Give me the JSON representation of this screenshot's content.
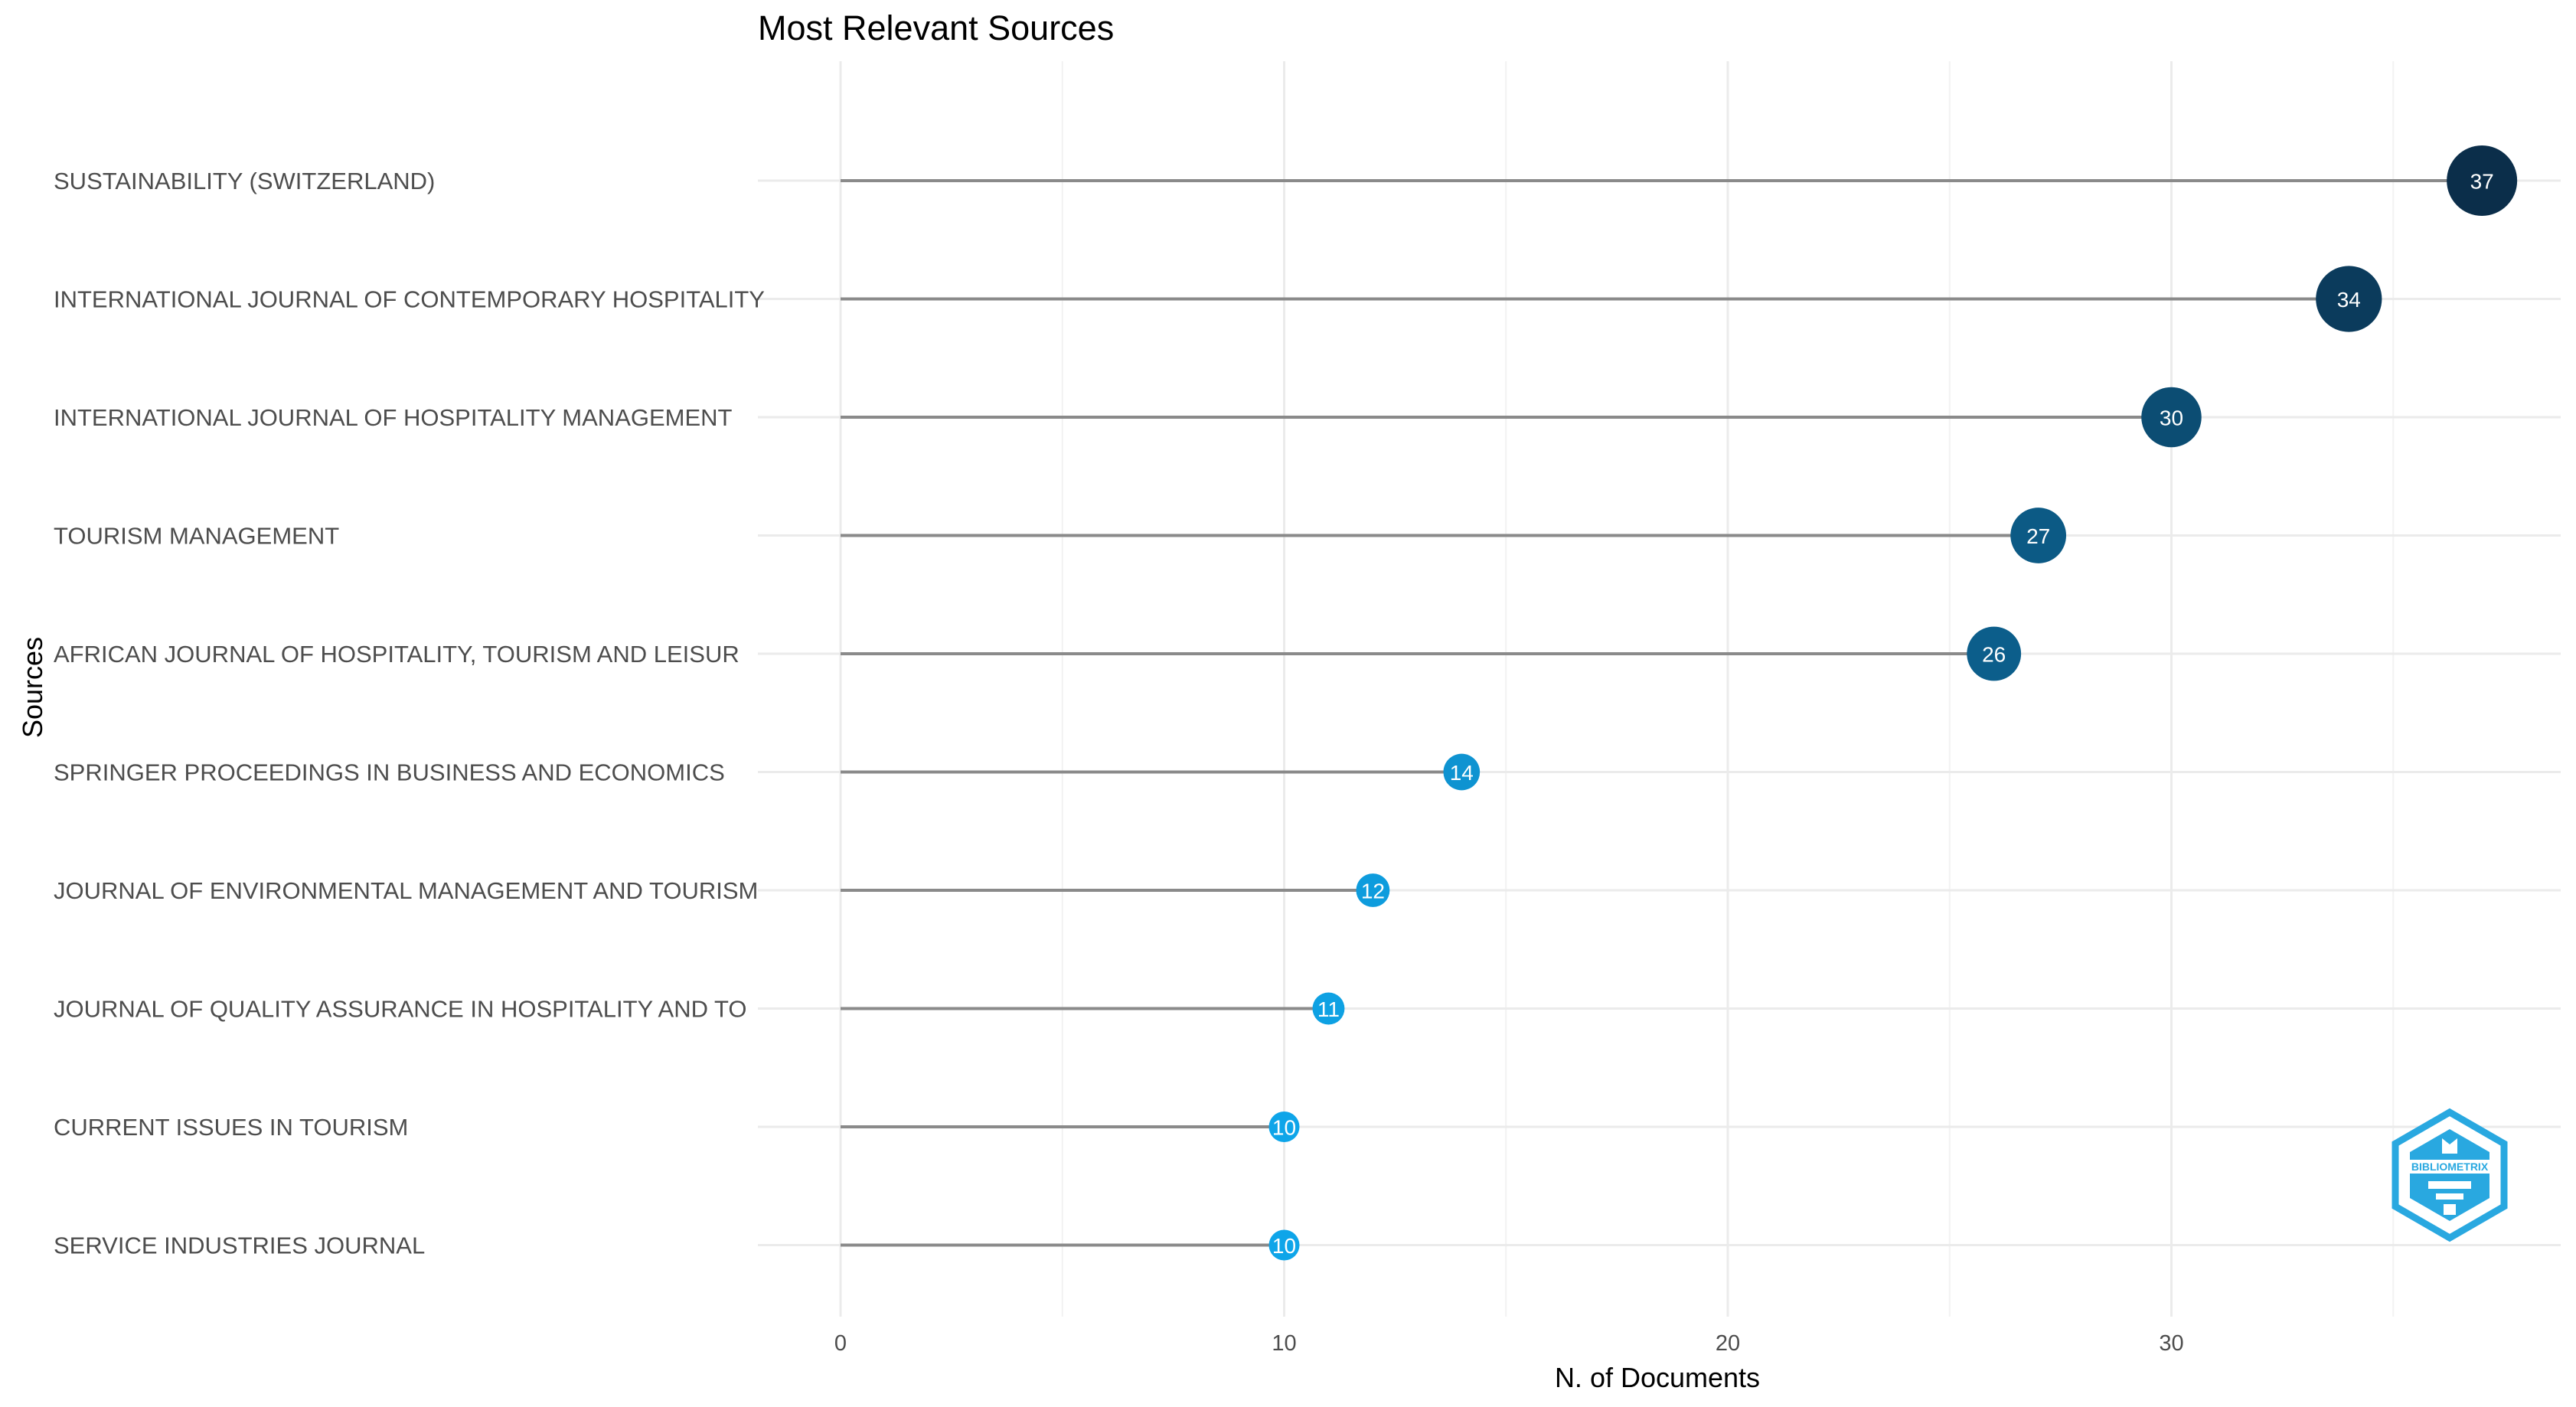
{
  "chart_data": {
    "type": "lollipop",
    "title": "Most Relevant Sources",
    "xlabel": "N. of Documents",
    "ylabel": "Sources",
    "xlim": [
      0,
      38
    ],
    "x_ticks": [
      0,
      10,
      20,
      30
    ],
    "grid": true,
    "legend": "none",
    "categories": [
      "SUSTAINABILITY (SWITZERLAND)",
      "INTERNATIONAL JOURNAL OF CONTEMPORARY HOSPITALITY",
      "INTERNATIONAL JOURNAL OF HOSPITALITY MANAGEMENT",
      "TOURISM MANAGEMENT",
      "AFRICAN JOURNAL OF HOSPITALITY, TOURISM AND LEISUR",
      "SPRINGER PROCEEDINGS IN BUSINESS AND ECONOMICS",
      "JOURNAL OF ENVIRONMENTAL MANAGEMENT AND TOURISM",
      "JOURNAL OF QUALITY ASSURANCE IN HOSPITALITY AND TO",
      "CURRENT ISSUES IN TOURISM",
      "SERVICE INDUSTRIES JOURNAL"
    ],
    "values": [
      37,
      34,
      30,
      27,
      26,
      14,
      12,
      11,
      10,
      10
    ],
    "color_low": "#0ea5e9",
    "color_high": "#0b2e4a"
  },
  "logo": {
    "text": "BIBLIOMETRIX",
    "color": "#29a8e0"
  }
}
